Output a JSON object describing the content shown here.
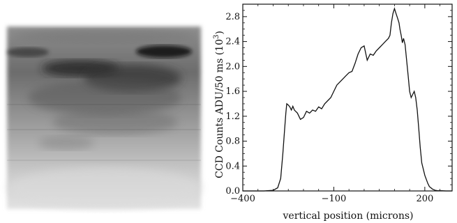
{
  "left_panel": {
    "kind": "ccd-image-grayscale"
  },
  "chart_data": {
    "type": "line",
    "title": "",
    "xlabel": "vertical position (microns)",
    "ylabel_prefix": "CCD Counts ADU/50 ms (10",
    "ylabel_exponent": "3",
    "ylabel_suffix": ")",
    "xlim": [
      -400,
      290
    ],
    "ylim": [
      0,
      3.0
    ],
    "xticks": [
      -400,
      -100,
      200
    ],
    "xtick_labels": [
      "−400",
      "−100",
      "200"
    ],
    "yticks": [
      0.0,
      0.4,
      0.8,
      1.2,
      1.6,
      2.0,
      2.4,
      2.8
    ],
    "ytick_labels": [
      "0.0",
      "0.4",
      "0.8",
      "1.2",
      "1.6",
      "2.0",
      "2.4",
      "2.8"
    ],
    "grid": false,
    "series": [
      {
        "x": [
          -400,
          -330,
          -300,
          -285,
          -275,
          -268,
          -262,
          -258,
          -255,
          -250,
          -245,
          -240,
          -235,
          -230,
          -220,
          -210,
          -200,
          -190,
          -180,
          -170,
          -160,
          -150,
          -140,
          -130,
          -120,
          -110,
          -100,
          -90,
          -80,
          -70,
          -60,
          -50,
          -40,
          -30,
          -20,
          -10,
          0,
          10,
          20,
          30,
          40,
          50,
          60,
          70,
          80,
          85,
          90,
          95,
          100,
          105,
          110,
          115,
          118,
          122,
          126,
          130,
          135,
          140,
          145,
          150,
          155,
          160,
          165,
          170,
          175,
          180,
          185,
          190,
          200,
          210,
          215,
          220,
          225,
          230,
          232,
          235,
          238,
          240,
          245,
          250,
          255,
          260,
          270,
          280,
          290
        ],
        "y": [
          0.0,
          0.0,
          0.01,
          0.05,
          0.2,
          0.6,
          1.0,
          1.25,
          1.4,
          1.38,
          1.35,
          1.3,
          1.36,
          1.3,
          1.25,
          1.15,
          1.18,
          1.28,
          1.25,
          1.3,
          1.28,
          1.35,
          1.32,
          1.4,
          1.45,
          1.5,
          1.6,
          1.7,
          1.75,
          1.8,
          1.85,
          1.9,
          1.92,
          2.05,
          2.2,
          2.3,
          2.33,
          2.1,
          2.2,
          2.18,
          2.25,
          2.3,
          2.35,
          2.4,
          2.45,
          2.5,
          2.7,
          2.85,
          2.93,
          2.85,
          2.78,
          2.7,
          2.6,
          2.5,
          2.38,
          2.45,
          2.35,
          2.1,
          1.85,
          1.6,
          1.5,
          1.55,
          1.6,
          1.5,
          1.3,
          1.0,
          0.7,
          0.45,
          0.25,
          0.12,
          0.07,
          0.05,
          0.03,
          0.02,
          0.015,
          0.01,
          0.008,
          0.006,
          0.005,
          0.004,
          0.003,
          0.002,
          0.0,
          0.0,
          0.0
        ]
      }
    ]
  }
}
